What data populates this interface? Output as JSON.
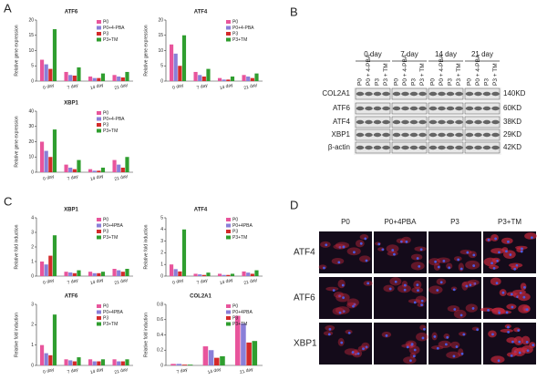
{
  "panel_labels": [
    "A",
    "B",
    "C",
    "D"
  ],
  "chart_data": [
    {
      "type": "bar",
      "title": "ATF6",
      "ylabel": "Relative gene expression",
      "categories": [
        "0 day",
        "7 day",
        "14 day",
        "21 day"
      ],
      "series": [
        {
          "name": "P0",
          "color": "#e8559c",
          "values": [
            7,
            3,
            1.5,
            2
          ]
        },
        {
          "name": "P0+4-PBA",
          "color": "#8a7fd8",
          "values": [
            5.5,
            2,
            1,
            1.5
          ]
        },
        {
          "name": "P3",
          "color": "#d42a2a",
          "values": [
            4,
            1.8,
            1,
            1.2
          ]
        },
        {
          "name": "P3+TM",
          "color": "#2f9e2f",
          "values": [
            17,
            4.5,
            2.5,
            3
          ]
        }
      ],
      "ylim": [
        0,
        20
      ],
      "yticks": [
        0,
        5,
        10,
        15,
        20
      ]
    },
    {
      "type": "bar",
      "title": "ATF4",
      "ylabel": "Relative gene expression",
      "categories": [
        "0 day",
        "7 day",
        "14 day",
        "21 day"
      ],
      "series": [
        {
          "name": "P0",
          "color": "#e8559c",
          "values": [
            12,
            3,
            1,
            2
          ]
        },
        {
          "name": "P0+4-PBA",
          "color": "#8a7fd8",
          "values": [
            9,
            2,
            0.5,
            1.5
          ]
        },
        {
          "name": "P3",
          "color": "#d42a2a",
          "values": [
            5,
            1.5,
            0.5,
            1
          ]
        },
        {
          "name": "P3+TM",
          "color": "#2f9e2f",
          "values": [
            15,
            4,
            1.5,
            2.5
          ]
        }
      ],
      "ylim": [
        0,
        20
      ],
      "yticks": [
        0,
        5,
        10,
        15,
        20
      ]
    },
    {
      "type": "bar",
      "title": "XBP1",
      "ylabel": "Relative gene expression",
      "categories": [
        "0 day",
        "7 day",
        "14 day",
        "21 day"
      ],
      "series": [
        {
          "name": "P0",
          "color": "#e8559c",
          "values": [
            20,
            5,
            2,
            8
          ]
        },
        {
          "name": "P0+4-PBA",
          "color": "#8a7fd8",
          "values": [
            14,
            3,
            1,
            5
          ]
        },
        {
          "name": "P3",
          "color": "#d42a2a",
          "values": [
            10,
            2,
            1,
            3
          ]
        },
        {
          "name": "P3+TM",
          "color": "#2f9e2f",
          "values": [
            28,
            8,
            3,
            10
          ]
        }
      ],
      "ylim": [
        0,
        40
      ],
      "yticks": [
        0,
        10,
        20,
        30,
        40
      ]
    },
    {
      "type": "bar",
      "title": "XBP1",
      "ylabel": "Relative fold induction",
      "categories": [
        "0 day",
        "7 day",
        "14 day",
        "21 day"
      ],
      "series": [
        {
          "name": "P0",
          "color": "#e8559c",
          "values": [
            1,
            0.3,
            0.3,
            0.5
          ]
        },
        {
          "name": "P0+4PBA",
          "color": "#8a7fd8",
          "values": [
            0.8,
            0.25,
            0.2,
            0.4
          ]
        },
        {
          "name": "P3",
          "color": "#d42a2a",
          "values": [
            1.4,
            0.2,
            0.2,
            0.3
          ]
        },
        {
          "name": "P3+TM",
          "color": "#2f9e2f",
          "values": [
            2.8,
            0.4,
            0.3,
            0.5
          ]
        }
      ],
      "ylim": [
        0,
        4
      ],
      "yticks": [
        0,
        1,
        2,
        3,
        4
      ]
    },
    {
      "type": "bar",
      "title": "ATF4",
      "ylabel": "Relative fold induction",
      "categories": [
        "0 day",
        "7 day",
        "14 day",
        "21 day"
      ],
      "series": [
        {
          "name": "P0",
          "color": "#e8559c",
          "values": [
            1,
            0.2,
            0.2,
            0.4
          ]
        },
        {
          "name": "P0+4PBA",
          "color": "#8a7fd8",
          "values": [
            0.6,
            0.15,
            0.1,
            0.3
          ]
        },
        {
          "name": "P3",
          "color": "#d42a2a",
          "values": [
            0.4,
            0.1,
            0.1,
            0.2
          ]
        },
        {
          "name": "P3+TM",
          "color": "#2f9e2f",
          "values": [
            4,
            0.3,
            0.2,
            0.5
          ]
        }
      ],
      "ylim": [
        0,
        5
      ],
      "yticks": [
        0,
        1,
        2,
        3,
        4,
        5
      ]
    },
    {
      "type": "bar",
      "title": "ATF6",
      "ylabel": "Relative fold induction",
      "categories": [
        "0 day",
        "7 day",
        "14 day",
        "21 day"
      ],
      "series": [
        {
          "name": "P0",
          "color": "#e8559c",
          "values": [
            1,
            0.3,
            0.3,
            0.3
          ]
        },
        {
          "name": "P0+4PBA",
          "color": "#8a7fd8",
          "values": [
            0.6,
            0.25,
            0.2,
            0.2
          ]
        },
        {
          "name": "P3",
          "color": "#d42a2a",
          "values": [
            0.5,
            0.2,
            0.2,
            0.2
          ]
        },
        {
          "name": "P3+TM",
          "color": "#2f9e2f",
          "values": [
            2.5,
            0.4,
            0.3,
            0.3
          ]
        }
      ],
      "ylim": [
        0,
        3
      ],
      "yticks": [
        0,
        1,
        2,
        3
      ]
    },
    {
      "type": "bar",
      "title": "COL2A1",
      "ylabel": "Relative fold induction",
      "categories": [
        "7 day",
        "14 day",
        "21 day"
      ],
      "series": [
        {
          "name": "P0",
          "color": "#e8559c",
          "values": [
            0.02,
            0.25,
            0.65
          ]
        },
        {
          "name": "P0+4PBA",
          "color": "#8a7fd8",
          "values": [
            0.02,
            0.2,
            0.55
          ]
        },
        {
          "name": "P3",
          "color": "#d42a2a",
          "values": [
            0.01,
            0.1,
            0.3
          ]
        },
        {
          "name": "P3+TM",
          "color": "#2f9e2f",
          "values": [
            0.01,
            0.12,
            0.32
          ]
        }
      ],
      "ylim": [
        0,
        0.8
      ],
      "yticks": [
        0,
        0.2,
        0.4,
        0.6,
        0.8
      ]
    }
  ],
  "blot": {
    "days": [
      "0 day",
      "7 day",
      "14 day",
      "21 day"
    ],
    "lanes": [
      "P0",
      "P0 + 4-PBA",
      "P3",
      "P3 + TM"
    ],
    "rows": [
      {
        "protein": "COL2A1",
        "size": "140KD"
      },
      {
        "protein": "ATF6",
        "size": "60KD"
      },
      {
        "protein": "ATF4",
        "size": "38KD"
      },
      {
        "protein": "XBP1",
        "size": "29KD"
      },
      {
        "protein": "β-actin",
        "size": "42KD"
      }
    ]
  },
  "images": {
    "columns": [
      "P0",
      "P0+4PBA",
      "P3",
      "P3+TM"
    ],
    "rows": [
      "ATF4",
      "ATF6",
      "XBP1"
    ]
  }
}
